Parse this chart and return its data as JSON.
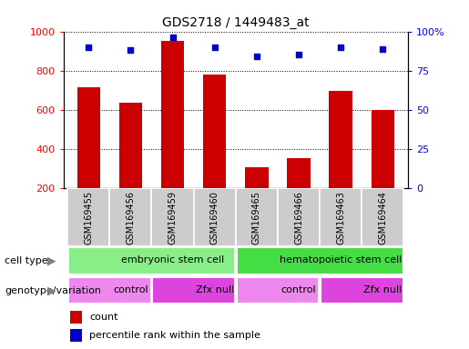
{
  "title": "GDS2718 / 1449483_at",
  "samples": [
    "GSM169455",
    "GSM169456",
    "GSM169459",
    "GSM169460",
    "GSM169465",
    "GSM169466",
    "GSM169463",
    "GSM169464"
  ],
  "counts": [
    715,
    635,
    950,
    780,
    310,
    355,
    695,
    600
  ],
  "percentile_ranks": [
    90,
    88,
    96,
    90,
    84,
    85,
    90,
    89
  ],
  "y_min": 200,
  "y_max": 1000,
  "y_ticks": [
    200,
    400,
    600,
    800,
    1000
  ],
  "y2_ticks": [
    0,
    25,
    50,
    75,
    100
  ],
  "bar_color": "#cc0000",
  "scatter_color": "#0000cc",
  "bar_bottom": 200,
  "cell_type_groups": [
    {
      "label": "embryonic stem cell",
      "start": 0,
      "end": 4,
      "color": "#88ee88"
    },
    {
      "label": "hematopoietic stem cell",
      "start": 4,
      "end": 8,
      "color": "#44dd44"
    }
  ],
  "genotype_groups": [
    {
      "label": "control",
      "start": 0,
      "end": 2,
      "color": "#ee88ee"
    },
    {
      "label": "Zfx null",
      "start": 2,
      "end": 4,
      "color": "#dd44dd"
    },
    {
      "label": "control",
      "start": 4,
      "end": 6,
      "color": "#ee88ee"
    },
    {
      "label": "Zfx null",
      "start": 6,
      "end": 8,
      "color": "#dd44dd"
    }
  ],
  "legend_count_color": "#cc0000",
  "legend_scatter_color": "#0000cc",
  "row_label_cell_type": "cell type",
  "row_label_genotype": "genotype/variation",
  "sample_bg_color": "#cccccc",
  "sample_border_color": "#ffffff"
}
